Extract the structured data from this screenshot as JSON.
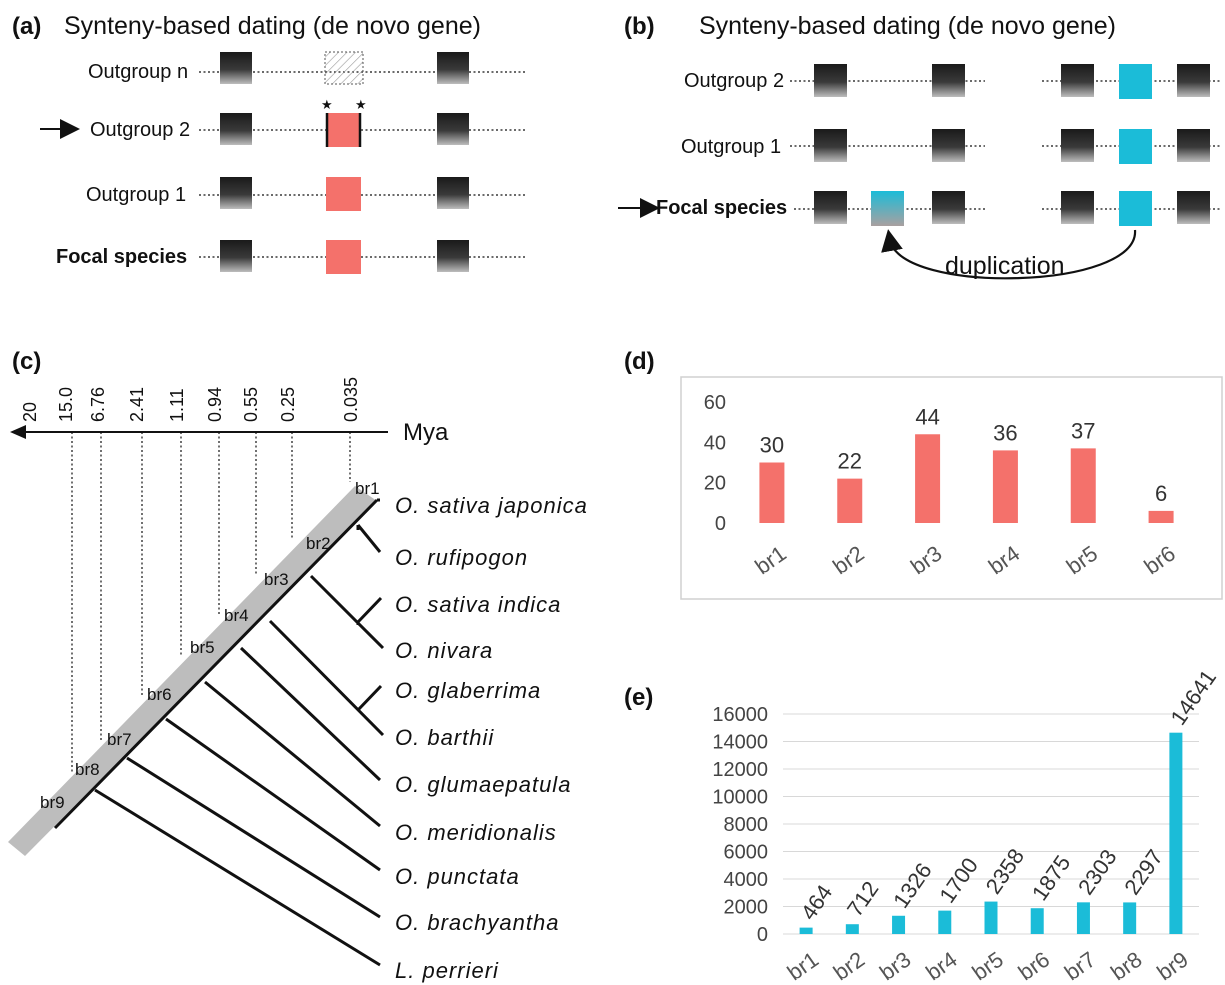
{
  "panel_a": {
    "label": "(a)",
    "title": "Synteny-based dating (de novo gene)",
    "rows": [
      "Outgroup n",
      "Outgroup 2",
      "Outgroup 1",
      "Focal species"
    ],
    "colors": {
      "gene": "#f4716b",
      "flank": "#222222"
    }
  },
  "panel_b": {
    "label": "(b)",
    "title": "Synteny-based dating (de novo gene)",
    "rows": [
      "Outgroup 2",
      "Outgroup 1",
      "Focal species"
    ],
    "annotation": "duplication",
    "colors": {
      "gene": "#1bbcd8"
    }
  },
  "panel_c": {
    "label": "(c)",
    "unit": "Mya",
    "times": [
      "20",
      "15.0",
      "6.76",
      "2.41",
      "1.11",
      "0.94",
      "0.55",
      "0.25",
      "0.035"
    ],
    "branches": [
      "br1",
      "br2",
      "br3",
      "br4",
      "br5",
      "br6",
      "br7",
      "br8",
      "br9"
    ],
    "species": [
      "O. sativa japonica",
      "O. rufipogon",
      "O. sativa indica",
      "O. nivara",
      "O. glaberrima",
      "O. barthii",
      "O. glumaepatula",
      "O. meridionalis",
      "O. punctata",
      "O. brachyantha",
      "L. perrieri"
    ]
  },
  "panel_d": {
    "label": "(d)"
  },
  "panel_e": {
    "label": "(e)"
  },
  "chart_data": [
    {
      "type": "bar",
      "categories": [
        "br1",
        "br2",
        "br3",
        "br4",
        "br5",
        "br6"
      ],
      "values": [
        30,
        22,
        44,
        36,
        37,
        6
      ],
      "ylim": [
        0,
        60
      ],
      "yticks": [
        0,
        20,
        40,
        60
      ],
      "color": "#f4716b",
      "grid": false
    },
    {
      "type": "bar",
      "categories": [
        "br1",
        "br2",
        "br3",
        "br4",
        "br5",
        "br6",
        "br7",
        "br8",
        "br9"
      ],
      "values": [
        464,
        712,
        1326,
        1700,
        2358,
        1875,
        2303,
        2297,
        14641
      ],
      "ylim": [
        0,
        16000
      ],
      "yticks": [
        0,
        2000,
        4000,
        6000,
        8000,
        10000,
        12000,
        14000,
        16000
      ],
      "color": "#1bbcd8",
      "grid": true
    }
  ]
}
